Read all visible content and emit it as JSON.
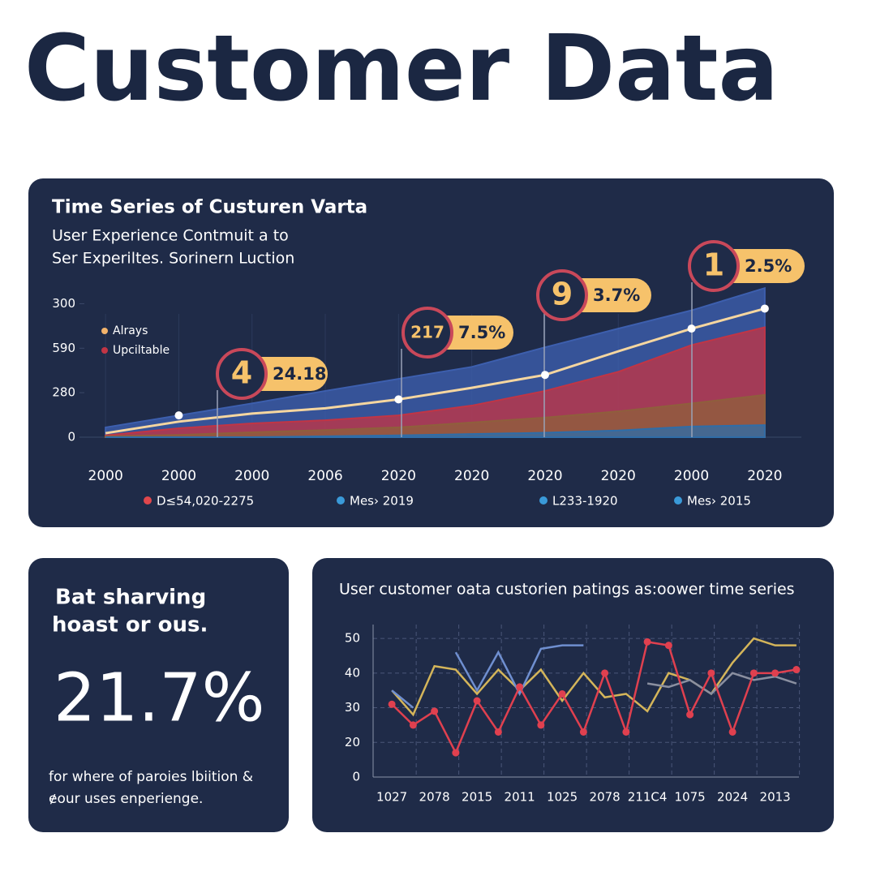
{
  "title": "Customer Data",
  "stat_card": {
    "heading": [
      "Bat sharving",
      "hoast or ous."
    ],
    "value": "21.7%",
    "caption": [
      "for where of paroies lbiition &",
      "ɇour uses enperienge."
    ]
  },
  "chart_data": [
    {
      "type": "area",
      "title": "Time Series of Custuren Varta",
      "subtitle": [
        "User Experience Contmuit a to",
        "Ser Experiltes. Sorinern Luction"
      ],
      "categories": [
        "2000",
        "2000",
        "2000",
        "2006",
        "2020",
        "2020",
        "2020",
        "2020",
        "2000",
        "2020"
      ],
      "ylim": [
        0,
        3.5
      ],
      "yticks": [
        0,
        {
          "value": 1,
          "label": "280"
        },
        {
          "value": 2,
          "label": "590"
        },
        {
          "value": 3,
          "label": "300"
        }
      ],
      "series": [
        {
          "color": "#3d5fae",
          "area": true,
          "values": [
            0.22,
            0.49,
            0.76,
            1.04,
            1.31,
            1.58,
            2.02,
            2.44,
            2.85,
            3.35
          ]
        },
        {
          "name": "Upciltable",
          "color": "#c13545",
          "area": true,
          "values": [
            0.04,
            0.2,
            0.31,
            0.38,
            0.49,
            0.71,
            1.04,
            1.47,
            2.07,
            2.47
          ]
        },
        {
          "color": "#8f5f3c",
          "area": true,
          "values": [
            0.02,
            0.05,
            0.11,
            0.16,
            0.22,
            0.33,
            0.44,
            0.58,
            0.76,
            0.95
          ]
        },
        {
          "color": "#2f6da8",
          "area": true,
          "values": [
            0,
            0,
            0,
            0.02,
            0.04,
            0.07,
            0.1,
            0.15,
            0.24,
            0.27
          ]
        },
        {
          "name": "Alrays",
          "color": "#f5d6a0",
          "area": false,
          "values": [
            0.09,
            0.35,
            0.53,
            0.65,
            0.85,
            1.11,
            1.4,
            1.93,
            2.44,
            2.89
          ]
        }
      ],
      "annotations": [
        {
          "label": "4",
          "value": "24.18"
        },
        {
          "label": "217",
          "value": "7.5%"
        },
        {
          "label": "9",
          "value": "3.7%"
        },
        {
          "label": "1",
          "value": "2.5%"
        }
      ],
      "footer_legend": [
        {
          "name": "D≤54,020-2275",
          "color": "#e0474c"
        },
        {
          "name": "Mes› 2019",
          "color": "#3a9ad9"
        },
        {
          "name": "L233-1920",
          "color": "#3a9ad9"
        },
        {
          "name": "Mes› 2015",
          "color": "#3a9ad9"
        }
      ]
    },
    {
      "type": "line",
      "title": "User customer oata custorien patings as:oower time series",
      "categories": [
        "1027",
        null,
        "2078",
        null,
        "2015",
        null,
        "2011",
        null,
        "1025",
        null,
        "2078",
        null,
        "211C4",
        null,
        "1075",
        null,
        "2024",
        null,
        "2013",
        null
      ],
      "ylim": [
        10,
        54
      ],
      "yticks": [
        {
          "value": 10,
          "label": "0"
        },
        20,
        30,
        40,
        50
      ],
      "grid": true,
      "series": [
        {
          "color": "#d4b55a",
          "markers": false,
          "values": [
            35,
            28,
            42,
            41,
            34,
            41,
            35,
            41,
            32,
            40,
            33,
            34,
            29,
            40,
            38,
            34,
            43,
            50,
            48,
            48
          ]
        },
        {
          "color": "#6f8fd0",
          "markers": false,
          "values": [
            35,
            30,
            null,
            46,
            35,
            46,
            34,
            47,
            48,
            48,
            null,
            null,
            null,
            null,
            null,
            null,
            null,
            null,
            null,
            null
          ]
        },
        {
          "color": "#8a8fa0",
          "markers": false,
          "values": [
            null,
            null,
            null,
            null,
            null,
            null,
            null,
            null,
            null,
            null,
            null,
            null,
            37,
            36,
            38,
            34,
            40,
            38,
            39,
            37
          ]
        },
        {
          "color": "#e0404f",
          "markers": true,
          "values": [
            31,
            25,
            29,
            17,
            32,
            23,
            36,
            25,
            34,
            23,
            40,
            23,
            49,
            48,
            28,
            40,
            23,
            40,
            40,
            41
          ]
        }
      ]
    }
  ]
}
